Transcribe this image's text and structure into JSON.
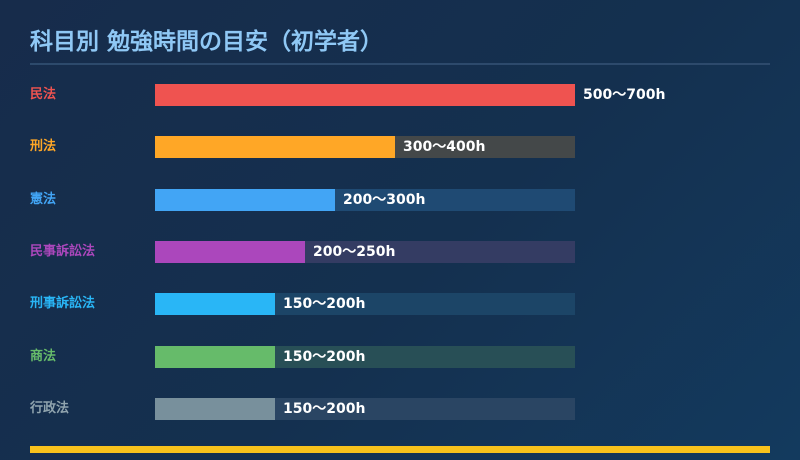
{
  "title": "科目別 勉強時間の目安（初学者）",
  "chart_data": {
    "type": "bar",
    "orientation": "horizontal",
    "title": "科目別 勉強時間の目安（初学者）",
    "unit": "h",
    "scale_max": 700,
    "legend": "none",
    "grid": false,
    "categories": [
      "民法",
      "刑法",
      "憲法",
      "民事訴訟法",
      "刑事訴訟法",
      "商法",
      "行政法"
    ],
    "ranges": [
      [
        500,
        700
      ],
      [
        300,
        400
      ],
      [
        200,
        300
      ],
      [
        200,
        250
      ],
      [
        150,
        200
      ],
      [
        150,
        200
      ],
      [
        150,
        200
      ]
    ],
    "value_labels": [
      "500〜700h",
      "300〜400h",
      "200〜300h",
      "200〜250h",
      "150〜200h",
      "150〜200h",
      "150〜200h"
    ],
    "bar_colors": [
      "#ef5350",
      "#ffa726",
      "#42a5f5",
      "#ab47bc",
      "#29b6f6",
      "#66bb6a",
      "#78909c"
    ],
    "label_colors": [
      "#ef5350",
      "#ffa726",
      "#42a5f5",
      "#ab47bc",
      "#29b6f6",
      "#66bb6a",
      "#90a4ae"
    ],
    "track_colors": [
      "#2c4566",
      "#444849",
      "#1f4a73",
      "#343c63",
      "#1c4567",
      "#284f56",
      "#2a4563"
    ]
  }
}
